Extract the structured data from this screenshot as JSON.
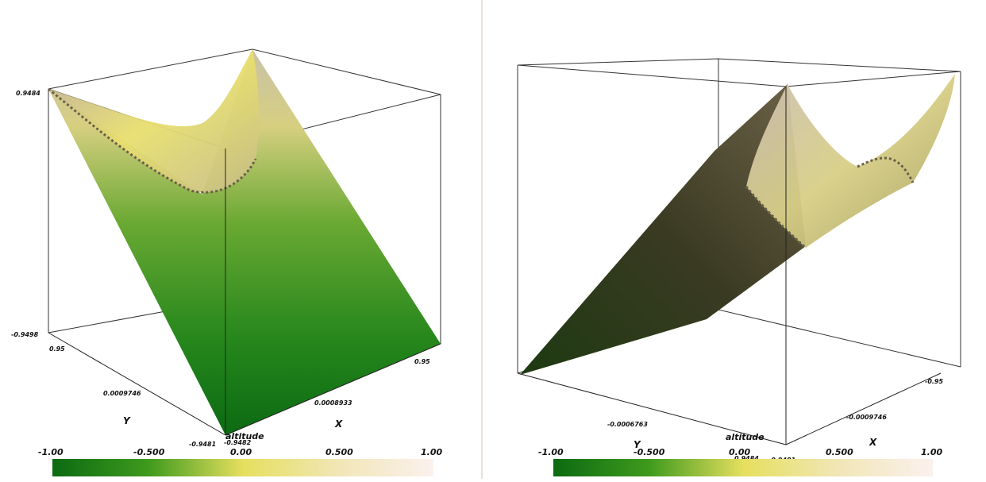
{
  "left_view": {
    "z_top": "0.9484",
    "z_bottom": "-0.9498",
    "y_left": "0.95",
    "y_mid": "0.0009746",
    "y_label": "Y",
    "y_low": "-0.9481",
    "y_low2": "-0.9482",
    "x_mid": "0.0008933",
    "x_label": "X",
    "x_right": "0.95",
    "legend_title": "altitude",
    "legend_ticks": [
      "-1.00",
      "-0.500",
      "0.00",
      "0.500",
      "1.00"
    ]
  },
  "right_view": {
    "y_mid": "-0.0006763",
    "y_label": "Y",
    "x_mid": "-0.0009746",
    "x_label": "X",
    "x_right": "-0.95",
    "bottom_val": "-0.9481",
    "bottom_val2": "0.9484",
    "legend_title": "altitude",
    "legend_ticks": [
      "-1.00",
      "-0.500",
      "0.00",
      "0.500",
      "1.00"
    ]
  },
  "colors": {
    "dark_green": "#0d6b12",
    "yellow": "#e7e070",
    "light_pink": "#fbeeea"
  }
}
